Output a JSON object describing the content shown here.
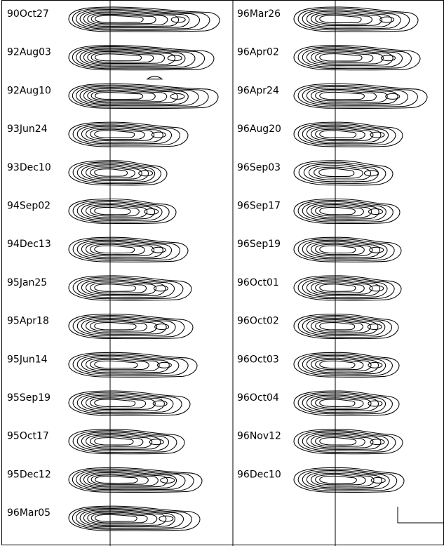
{
  "figure": {
    "colors": {
      "ink": "#000000",
      "background": "#ffffff"
    },
    "columns": [
      {
        "panels": [
          {
            "label": "90Oct27",
            "levels": 8
          },
          {
            "label": "92Aug03",
            "levels": 8,
            "extra_feature": "detached-blob"
          },
          {
            "label": "92Aug10",
            "levels": 8
          },
          {
            "label": "93Jun24",
            "levels": 7
          },
          {
            "label": "93Dec10",
            "levels": 7
          },
          {
            "label": "94Sep02",
            "levels": 7
          },
          {
            "label": "94Dec13",
            "levels": 7
          },
          {
            "label": "95Jan25",
            "levels": 7
          },
          {
            "label": "95Apr18",
            "levels": 7
          },
          {
            "label": "95Jun14",
            "levels": 7
          },
          {
            "label": "95Sep19",
            "levels": 7
          },
          {
            "label": "95Oct17",
            "levels": 7
          },
          {
            "label": "95Dec12",
            "levels": 8
          },
          {
            "label": "96Mar05",
            "levels": 8
          }
        ]
      },
      {
        "panels": [
          {
            "label": "96Mar26",
            "levels": 7
          },
          {
            "label": "96Apr02",
            "levels": 7
          },
          {
            "label": "96Apr24",
            "levels": 7
          },
          {
            "label": "96Aug20",
            "levels": 7
          },
          {
            "label": "96Sep03",
            "levels": 6
          },
          {
            "label": "96Sep17",
            "levels": 7
          },
          {
            "label": "96Sep19",
            "levels": 7
          },
          {
            "label": "96Oct01",
            "levels": 7
          },
          {
            "label": "96Oct02",
            "levels": 7
          },
          {
            "label": "96Oct03",
            "levels": 7
          },
          {
            "label": "96Oct04",
            "levels": 7
          },
          {
            "label": "96Nov12",
            "levels": 7
          },
          {
            "label": "96Dec10",
            "levels": 7
          }
        ]
      }
    ],
    "scale_bar": {
      "present": true
    }
  }
}
